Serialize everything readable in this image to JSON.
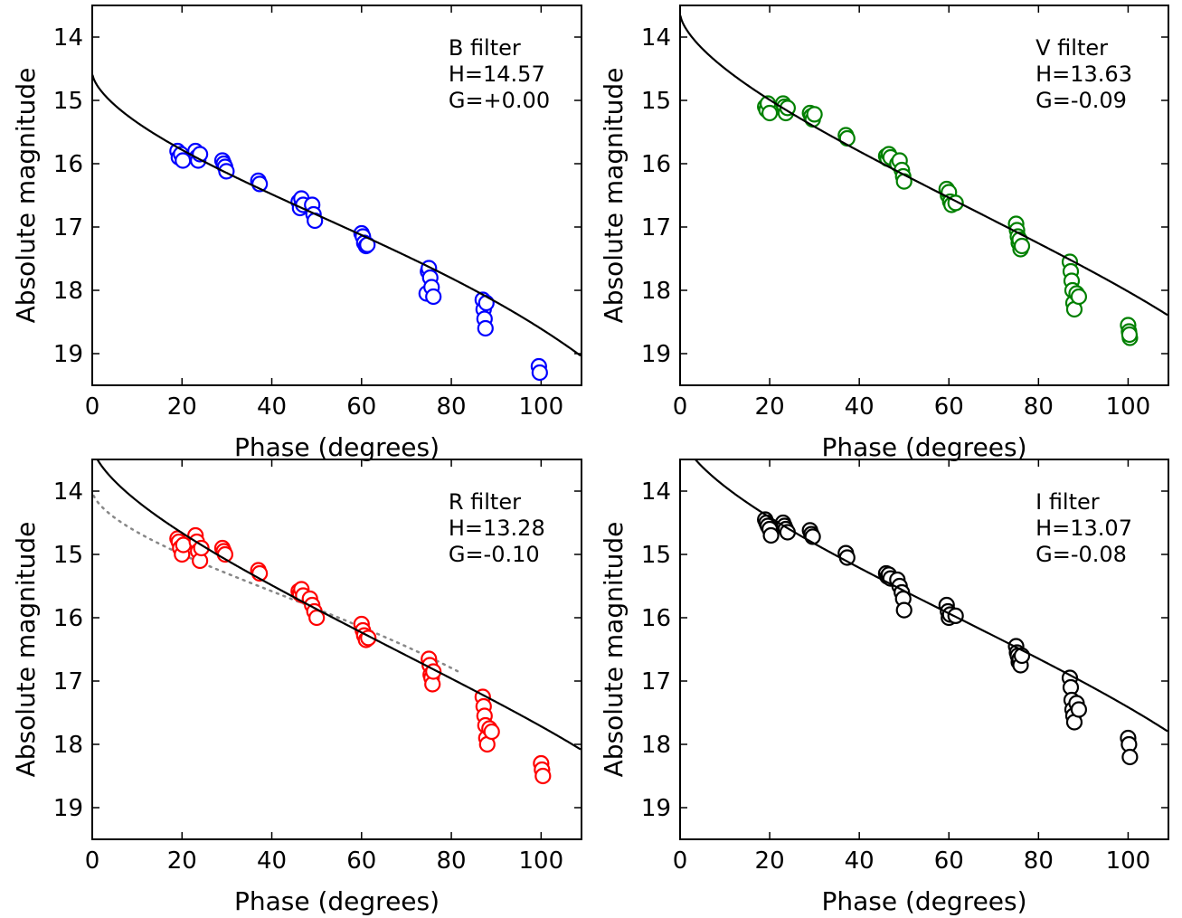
{
  "chart_data": [
    {
      "type": "scatter",
      "xlabel": "Phase (degrees)",
      "ylabel": "Absolute magnitude",
      "xlim": [
        0,
        109
      ],
      "ylim": [
        19.5,
        13.5
      ],
      "y_inverted": true,
      "xticks": [
        0,
        20,
        40,
        60,
        80,
        100
      ],
      "yticks": [
        14,
        15,
        16,
        17,
        18,
        19
      ],
      "annotations": [
        "B filter",
        "H=14.57",
        "G=+0.00"
      ],
      "marker_color": "#0000ff",
      "curve": {
        "H": 14.57,
        "G": 0.0
      },
      "series": [
        {
          "marker": "open-circle",
          "points": [
            [
              19,
              15.8
            ],
            [
              19.3,
              15.9
            ],
            [
              19.8,
              15.85
            ],
            [
              20.2,
              15.95
            ],
            [
              23,
              15.8
            ],
            [
              23.3,
              15.9
            ],
            [
              23.6,
              15.95
            ],
            [
              24,
              15.85
            ],
            [
              29,
              15.95
            ],
            [
              29.3,
              16.0
            ],
            [
              29.6,
              16.05
            ],
            [
              29.9,
              16.12
            ],
            [
              37,
              16.27
            ],
            [
              37.3,
              16.32
            ],
            [
              46,
              16.6
            ],
            [
              46.3,
              16.7
            ],
            [
              46.6,
              16.55
            ],
            [
              47,
              16.65
            ],
            [
              49,
              16.65
            ],
            [
              49.3,
              16.8
            ],
            [
              49.6,
              16.9
            ],
            [
              60,
              17.1
            ],
            [
              60.3,
              17.15
            ],
            [
              60.6,
              17.25
            ],
            [
              61,
              17.3
            ],
            [
              61.3,
              17.28
            ],
            [
              74.5,
              18.05
            ],
            [
              74.8,
              17.7
            ],
            [
              75,
              17.65
            ],
            [
              75.3,
              17.8
            ],
            [
              75.6,
              17.95
            ],
            [
              76,
              18.1
            ],
            [
              87,
              18.15
            ],
            [
              87.2,
              18.3
            ],
            [
              87.4,
              18.45
            ],
            [
              87.6,
              18.6
            ],
            [
              87.8,
              18.2
            ],
            [
              99.5,
              19.2
            ],
            [
              99.7,
              19.3
            ]
          ]
        }
      ]
    },
    {
      "type": "scatter",
      "xlabel": "Phase (degrees)",
      "ylabel": "Absolute magnitude",
      "xlim": [
        0,
        109
      ],
      "ylim": [
        19.5,
        13.5
      ],
      "y_inverted": true,
      "xticks": [
        0,
        20,
        40,
        60,
        80,
        100
      ],
      "yticks": [
        14,
        15,
        16,
        17,
        18,
        19
      ],
      "annotations": [
        "V filter",
        "H=13.63",
        "G=-0.09"
      ],
      "marker_color": "#008000",
      "curve": {
        "H": 13.63,
        "G": -0.09
      },
      "series": [
        {
          "marker": "open-circle",
          "points": [
            [
              19,
              15.1
            ],
            [
              19.3,
              15.15
            ],
            [
              19.6,
              15.05
            ],
            [
              20,
              15.2
            ],
            [
              23,
              15.05
            ],
            [
              23.3,
              15.1
            ],
            [
              23.6,
              15.2
            ],
            [
              24,
              15.12
            ],
            [
              29,
              15.2
            ],
            [
              29.3,
              15.25
            ],
            [
              29.6,
              15.3
            ],
            [
              30,
              15.22
            ],
            [
              37,
              15.55
            ],
            [
              37.3,
              15.6
            ],
            [
              46,
              15.88
            ],
            [
              46.3,
              15.92
            ],
            [
              46.6,
              15.85
            ],
            [
              47,
              15.9
            ],
            [
              48.5,
              16.0
            ],
            [
              49,
              15.95
            ],
            [
              49.5,
              16.1
            ],
            [
              49.8,
              16.2
            ],
            [
              50,
              16.28
            ],
            [
              59.5,
              16.4
            ],
            [
              59.8,
              16.5
            ],
            [
              60,
              16.45
            ],
            [
              60.3,
              16.6
            ],
            [
              60.6,
              16.65
            ],
            [
              61.5,
              16.62
            ],
            [
              75,
              16.95
            ],
            [
              75.2,
              17.05
            ],
            [
              75.4,
              17.15
            ],
            [
              75.6,
              17.25
            ],
            [
              75.8,
              17.2
            ],
            [
              76,
              17.35
            ],
            [
              76.3,
              17.3
            ],
            [
              87,
              17.55
            ],
            [
              87.2,
              17.7
            ],
            [
              87.4,
              17.85
            ],
            [
              87.6,
              18.0
            ],
            [
              87.8,
              18.2
            ],
            [
              88,
              18.3
            ],
            [
              88.5,
              18.05
            ],
            [
              89,
              18.1
            ],
            [
              100,
              18.55
            ],
            [
              100.2,
              18.65
            ],
            [
              100.4,
              18.75
            ],
            [
              100.3,
              18.7
            ]
          ]
        }
      ]
    },
    {
      "type": "scatter",
      "xlabel": "Phase (degrees)",
      "ylabel": "Absolute magnitude",
      "xlim": [
        0,
        109
      ],
      "ylim": [
        19.5,
        13.5
      ],
      "y_inverted": true,
      "xticks": [
        0,
        20,
        40,
        60,
        80,
        100
      ],
      "yticks": [
        14,
        15,
        16,
        17,
        18,
        19
      ],
      "annotations": [
        "R filter",
        "H=13.28",
        "G=-0.10"
      ],
      "marker_color": "#ff0000",
      "curve": {
        "H": 13.28,
        "G": -0.1
      },
      "dotted_curve": {
        "H": 14.0,
        "G": 0.15,
        "xmax": 82
      },
      "series": [
        {
          "marker": "open-circle",
          "points": [
            [
              19,
              14.75
            ],
            [
              19.3,
              14.8
            ],
            [
              19.6,
              14.9
            ],
            [
              20,
              15.0
            ],
            [
              20.3,
              14.85
            ],
            [
              23,
              14.7
            ],
            [
              23.3,
              14.8
            ],
            [
              23.6,
              14.95
            ],
            [
              24,
              15.1
            ],
            [
              24.3,
              14.9
            ],
            [
              29,
              14.9
            ],
            [
              29.3,
              14.95
            ],
            [
              29.6,
              15.0
            ],
            [
              37,
              15.25
            ],
            [
              37.3,
              15.3
            ],
            [
              46,
              15.58
            ],
            [
              46.3,
              15.62
            ],
            [
              46.6,
              15.55
            ],
            [
              47,
              15.65
            ],
            [
              48.5,
              15.7
            ],
            [
              49,
              15.8
            ],
            [
              49.5,
              15.9
            ],
            [
              50,
              16.0
            ],
            [
              60,
              16.1
            ],
            [
              60.3,
              16.2
            ],
            [
              60.6,
              16.28
            ],
            [
              61,
              16.35
            ],
            [
              61.5,
              16.32
            ],
            [
              75,
              16.65
            ],
            [
              75.2,
              16.75
            ],
            [
              75.4,
              16.9
            ],
            [
              75.6,
              16.95
            ],
            [
              75.8,
              17.05
            ],
            [
              76,
              16.85
            ],
            [
              87,
              17.25
            ],
            [
              87.2,
              17.4
            ],
            [
              87.4,
              17.55
            ],
            [
              87.6,
              17.7
            ],
            [
              87.8,
              17.9
            ],
            [
              88,
              18.0
            ],
            [
              88.5,
              17.75
            ],
            [
              89,
              17.8
            ],
            [
              100,
              18.3
            ],
            [
              100.2,
              18.4
            ],
            [
              100.4,
              18.5
            ]
          ]
        }
      ]
    },
    {
      "type": "scatter",
      "xlabel": "Phase (degrees)",
      "ylabel": "Absolute magnitude",
      "xlim": [
        0,
        109
      ],
      "ylim": [
        19.5,
        13.5
      ],
      "y_inverted": true,
      "xticks": [
        0,
        20,
        40,
        60,
        80,
        100
      ],
      "yticks": [
        14,
        15,
        16,
        17,
        18,
        19
      ],
      "annotations": [
        "I filter",
        "H=13.07",
        "G=-0.08"
      ],
      "marker_color": "#000000",
      "curve": {
        "H": 13.07,
        "G": -0.08
      },
      "series": [
        {
          "marker": "open-circle",
          "points": [
            [
              19,
              14.45
            ],
            [
              19.3,
              14.5
            ],
            [
              19.6,
              14.55
            ],
            [
              20,
              14.6
            ],
            [
              20.3,
              14.7
            ],
            [
              23,
              14.5
            ],
            [
              23.3,
              14.55
            ],
            [
              23.6,
              14.6
            ],
            [
              24,
              14.65
            ],
            [
              29,
              14.62
            ],
            [
              29.3,
              14.68
            ],
            [
              29.6,
              14.72
            ],
            [
              37,
              14.98
            ],
            [
              37.3,
              15.05
            ],
            [
              46,
              15.3
            ],
            [
              46.3,
              15.35
            ],
            [
              46.6,
              15.32
            ],
            [
              47,
              15.38
            ],
            [
              48.5,
              15.4
            ],
            [
              49,
              15.5
            ],
            [
              49.5,
              15.6
            ],
            [
              49.8,
              15.7
            ],
            [
              50,
              15.88
            ],
            [
              59.5,
              15.8
            ],
            [
              59.8,
              15.9
            ],
            [
              60,
              16.0
            ],
            [
              60.3,
              15.95
            ],
            [
              61.5,
              15.97
            ],
            [
              75,
              16.45
            ],
            [
              75.2,
              16.55
            ],
            [
              75.4,
              16.6
            ],
            [
              75.6,
              16.7
            ],
            [
              75.8,
              16.65
            ],
            [
              76,
              16.75
            ],
            [
              76.3,
              16.6
            ],
            [
              87,
              16.95
            ],
            [
              87.2,
              17.1
            ],
            [
              87.4,
              17.3
            ],
            [
              87.6,
              17.45
            ],
            [
              87.8,
              17.55
            ],
            [
              88,
              17.65
            ],
            [
              88.5,
              17.35
            ],
            [
              89,
              17.45
            ],
            [
              100,
              17.9
            ],
            [
              100.2,
              18.0
            ],
            [
              100.4,
              18.2
            ]
          ]
        }
      ]
    }
  ]
}
